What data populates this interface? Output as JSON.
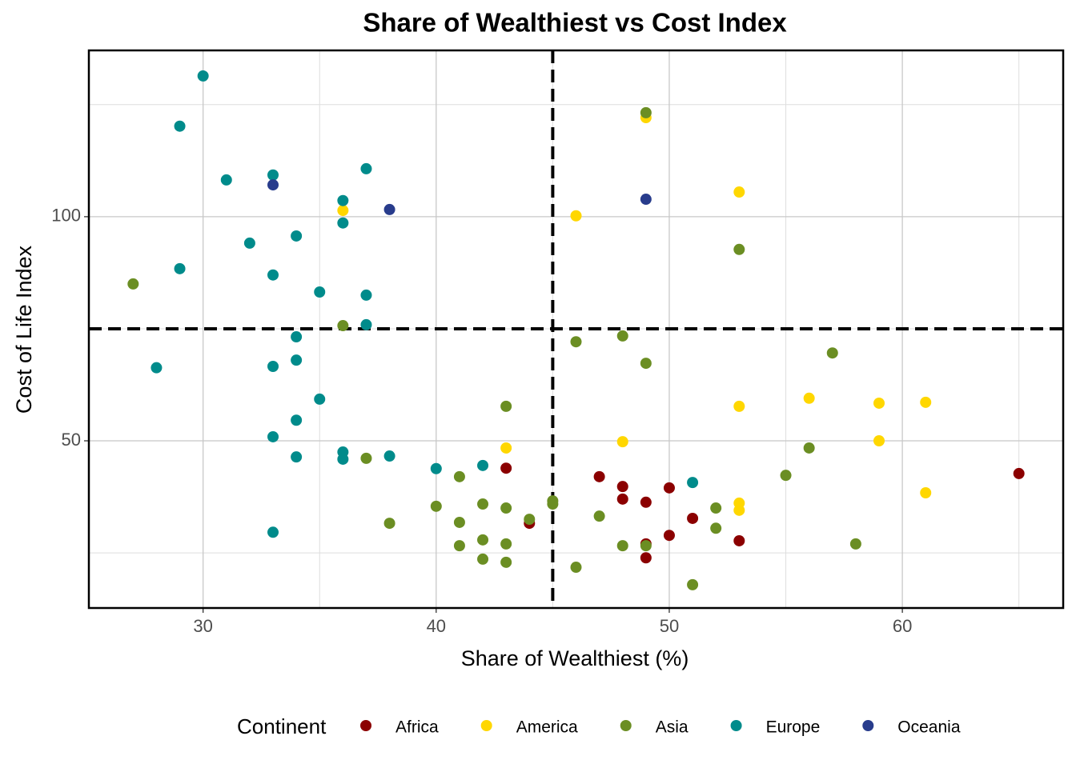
{
  "chart_data": {
    "type": "scatter",
    "title": "Share of Wealthiest vs Cost Index",
    "x_label": "Share of Wealthiest (%)",
    "y_label": "Cost of Life Index",
    "legend_title": "Continent",
    "legend_position": "bottom",
    "xlim": [
      25.1,
      66.9
    ],
    "ylim": [
      12.7,
      137.1
    ],
    "xticks": [
      30,
      40,
      50,
      60
    ],
    "yticks": [
      50,
      100
    ],
    "minor_xticks": [
      35,
      45,
      55,
      65
    ],
    "minor_yticks": [
      25,
      75,
      125
    ],
    "grid": true,
    "vline": 45,
    "hline": 75,
    "series": [
      {
        "name": "Africa",
        "color": "#8B0000",
        "x": [
          43,
          44,
          47,
          48,
          48,
          49,
          49,
          49,
          50,
          50,
          51,
          53,
          65
        ],
        "values": [
          43.9,
          31.6,
          42,
          39.8,
          37,
          36.3,
          27,
          23.9,
          39.5,
          28.9,
          32.7,
          27.7,
          42.7
        ]
      },
      {
        "name": "America",
        "color": "#FFD700",
        "x": [
          36,
          43,
          46,
          48,
          49,
          53,
          53,
          53,
          53,
          56,
          59,
          59,
          61,
          61
        ],
        "values": [
          101.4,
          48.4,
          100.2,
          49.8,
          122.1,
          105.5,
          57.7,
          36.1,
          34.5,
          59.5,
          58.4,
          50,
          58.6,
          38.4
        ]
      },
      {
        "name": "Asia",
        "color": "#6B8E23",
        "x": [
          27,
          36,
          37,
          38,
          40,
          41,
          41,
          41,
          42,
          42,
          42,
          43,
          43,
          43,
          43,
          44,
          45,
          45,
          46,
          46,
          47,
          48,
          48,
          49,
          49,
          49,
          51,
          52,
          52,
          53,
          55,
          56,
          57,
          58
        ],
        "values": [
          85,
          75.7,
          46.1,
          31.6,
          35.4,
          42,
          31.8,
          26.6,
          35.9,
          27.9,
          23.6,
          57.7,
          35,
          27,
          22.9,
          32.5,
          36.6,
          35.9,
          72.1,
          21.8,
          33.2,
          73.4,
          26.6,
          123.2,
          67.3,
          26.6,
          17.9,
          35,
          30.5,
          92.7,
          42.3,
          48.4,
          69.6,
          27
        ]
      },
      {
        "name": "Europe",
        "color": "#008B8B",
        "x": [
          30,
          29,
          29,
          28,
          31,
          32,
          33,
          33,
          33,
          33,
          33,
          34,
          34,
          34,
          34,
          34,
          35,
          35,
          36,
          36,
          36,
          36,
          37,
          37,
          37,
          38,
          40,
          42,
          51
        ],
        "values": [
          131.4,
          120.2,
          88.4,
          66.3,
          108.2,
          94.1,
          109.3,
          87,
          66.6,
          50.9,
          29.6,
          95.7,
          73.2,
          68,
          54.6,
          46.4,
          83.2,
          59.3,
          103.6,
          98.6,
          47.5,
          45.9,
          110.7,
          82.5,
          75.9,
          46.6,
          43.8,
          44.5,
          40.7
        ]
      },
      {
        "name": "Oceania",
        "color": "#283C8C",
        "x": [
          33,
          38,
          49
        ],
        "values": [
          107.1,
          101.6,
          103.9
        ]
      }
    ]
  }
}
